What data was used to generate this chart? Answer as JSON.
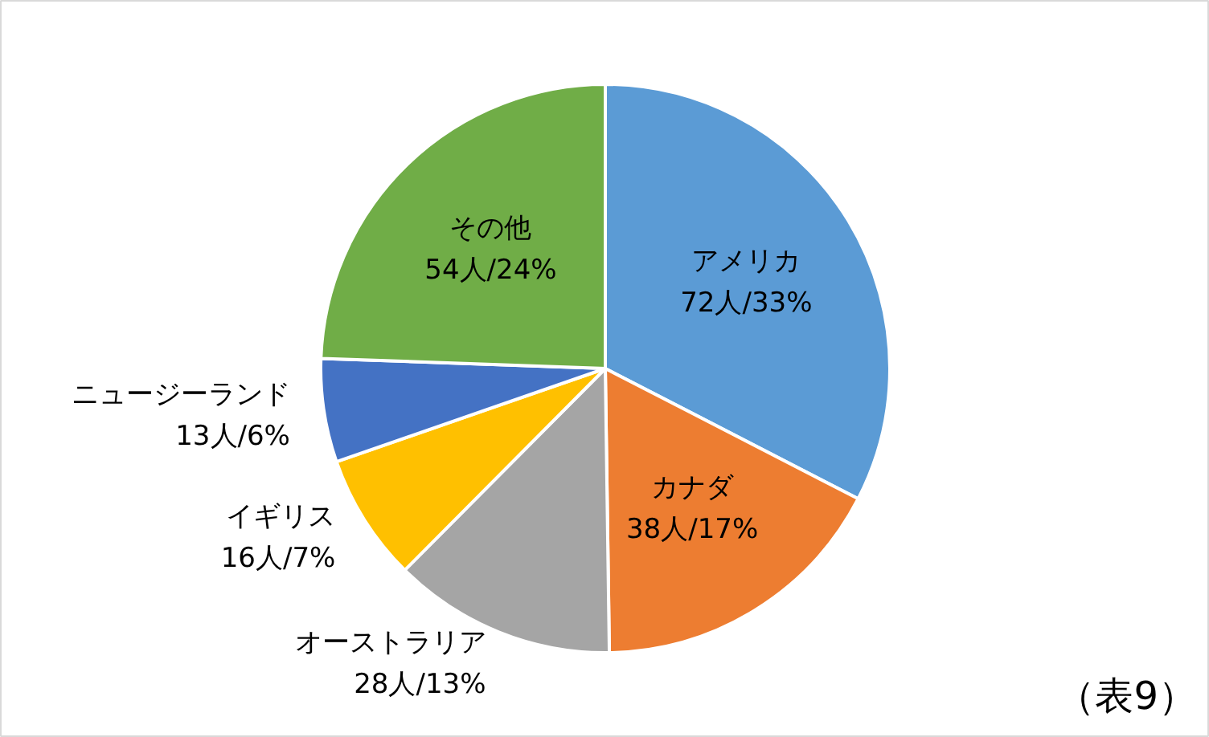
{
  "chart_data": {
    "type": "pie",
    "categories": [
      "アメリカ",
      "カナダ",
      "オーストラリア",
      "イギリス",
      "ニュージーランド",
      "その他"
    ],
    "values": [
      72,
      38,
      28,
      16,
      13,
      54
    ],
    "colors": [
      "#5b9bd5",
      "#ed7d31",
      "#a5a5a5",
      "#ffc000",
      "#4472c4",
      "#70ad47"
    ],
    "value_labels": [
      "72人/33%",
      "38人/17%",
      "28人/13%",
      "16人/7%",
      "13人/6%",
      "54人/24%"
    ],
    "annotations": [
      "（表9）"
    ]
  }
}
